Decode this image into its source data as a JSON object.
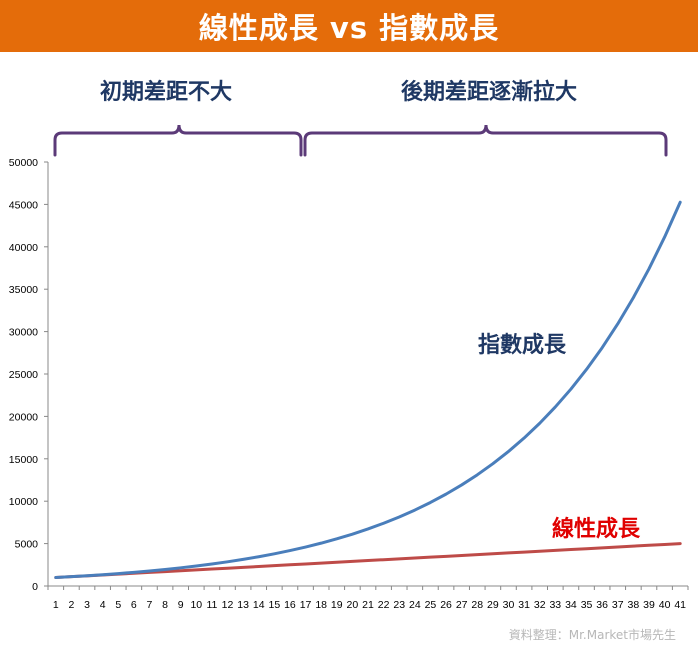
{
  "banner": {
    "title": "線性成長 vs 指數成長"
  },
  "annotations": {
    "early_label": "初期差距不大",
    "late_label": "後期差距逐漸拉大",
    "exponential_label": "指數成長",
    "linear_label": "線性成長"
  },
  "source_note": "資料整理：Mr.Market市場先生",
  "colors": {
    "banner": "#e46c0a",
    "bracket": "#5b3a78",
    "early_label": "#1f3864",
    "late_label": "#1f3864",
    "exponential_label": "#1f3864",
    "linear_label": "#e00000",
    "exponential_line": "#4a7ebb",
    "linear_line": "#be4b48",
    "axis": "#888888"
  },
  "chart_data": {
    "type": "line",
    "x": [
      1,
      2,
      3,
      4,
      5,
      6,
      7,
      8,
      9,
      10,
      11,
      12,
      13,
      14,
      15,
      16,
      17,
      18,
      19,
      20,
      21,
      22,
      23,
      24,
      25,
      26,
      27,
      28,
      29,
      30,
      31,
      32,
      33,
      34,
      35,
      36,
      37,
      38,
      39,
      40,
      41
    ],
    "series": [
      {
        "name": "指數成長",
        "values": [
          1000,
          1100,
          1210,
          1331,
          1464,
          1611,
          1772,
          1949,
          2144,
          2358,
          2594,
          2853,
          3138,
          3452,
          3797,
          4177,
          4595,
          5054,
          5560,
          6116,
          6727,
          7400,
          8140,
          8954,
          9850,
          10835,
          11918,
          13110,
          14421,
          15863,
          17449,
          19194,
          21114,
          23225,
          25548,
          28102,
          30913,
          34004,
          37404,
          41145,
          45259
        ],
        "color": "#4a7ebb"
      },
      {
        "name": "線性成長",
        "values": [
          1000,
          1100,
          1200,
          1300,
          1400,
          1500,
          1600,
          1700,
          1800,
          1900,
          2000,
          2100,
          2200,
          2300,
          2400,
          2500,
          2600,
          2700,
          2800,
          2900,
          3000,
          3100,
          3200,
          3300,
          3400,
          3500,
          3600,
          3700,
          3800,
          3900,
          4000,
          4100,
          4200,
          4300,
          4400,
          4500,
          4600,
          4700,
          4800,
          4900,
          5000
        ],
        "color": "#be4b48"
      }
    ],
    "yticks": [
      0,
      5000,
      10000,
      15000,
      20000,
      25000,
      30000,
      35000,
      40000,
      45000,
      50000
    ],
    "ylim": [
      0,
      50000
    ],
    "title": "線性成長 vs 指數成長",
    "xlabel": "",
    "ylabel": "",
    "grid": false
  }
}
